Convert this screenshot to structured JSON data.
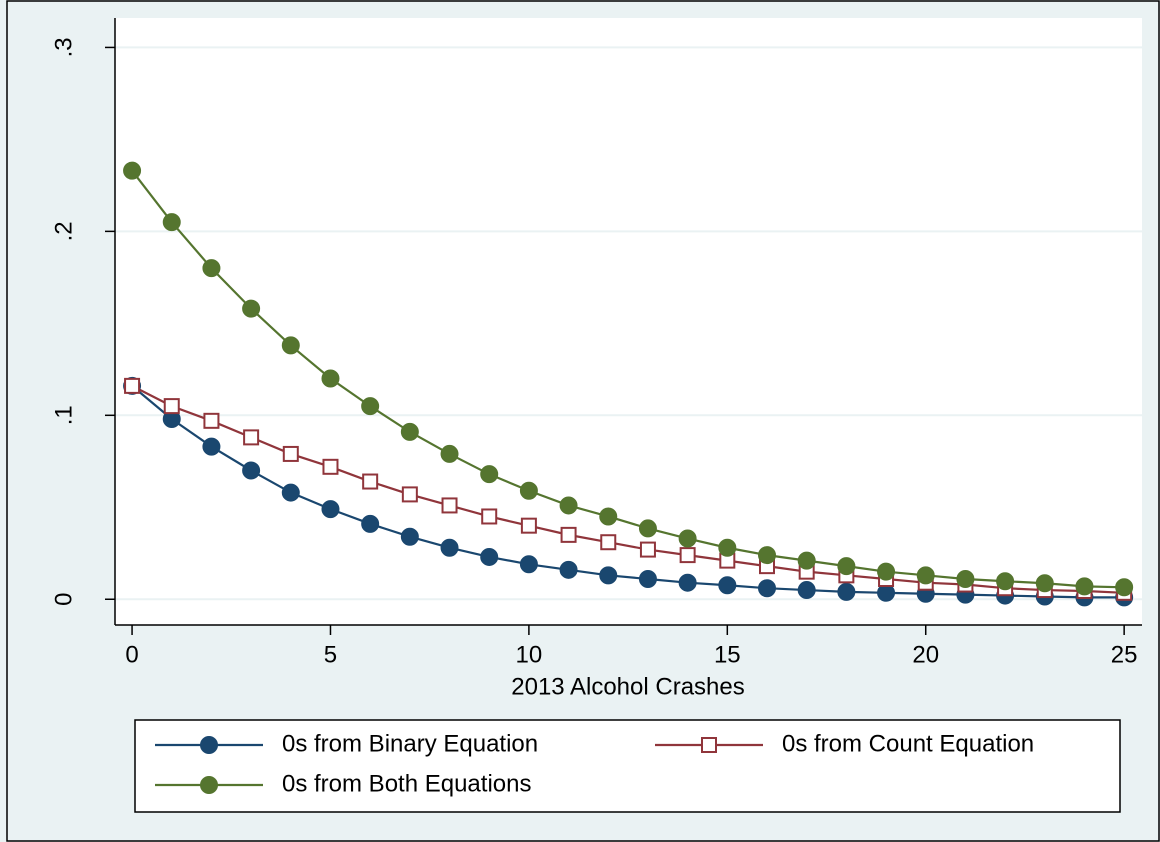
{
  "chart_data": {
    "type": "line",
    "x_label": "2013 Alcohol Crashes",
    "x": [
      0,
      1,
      2,
      3,
      4,
      5,
      6,
      7,
      8,
      9,
      10,
      11,
      12,
      13,
      14,
      15,
      16,
      17,
      18,
      19,
      20,
      21,
      22,
      23,
      24,
      25
    ],
    "series": [
      {
        "name": "0s from Binary Equation",
        "color": "#1a476f",
        "marker": "circle",
        "values": [
          0.116,
          0.098,
          0.083,
          0.07,
          0.058,
          0.049,
          0.041,
          0.034,
          0.028,
          0.023,
          0.019,
          0.016,
          0.013,
          0.011,
          0.009,
          0.0076,
          0.006,
          0.005,
          0.004,
          0.0035,
          0.003,
          0.0025,
          0.002,
          0.0015,
          0.001,
          0.001
        ]
      },
      {
        "name": "0s from Count Equation",
        "color": "#90353b",
        "marker": "square",
        "values": [
          0.116,
          0.105,
          0.097,
          0.088,
          0.079,
          0.072,
          0.064,
          0.057,
          0.051,
          0.045,
          0.04,
          0.035,
          0.031,
          0.027,
          0.024,
          0.021,
          0.018,
          0.015,
          0.013,
          0.011,
          0.009,
          0.008,
          0.006,
          0.005,
          0.0045,
          0.0035
        ]
      },
      {
        "name": "0s from Both Equations",
        "color": "#55752f",
        "marker": "circle",
        "values": [
          0.233,
          0.205,
          0.18,
          0.158,
          0.138,
          0.12,
          0.105,
          0.091,
          0.079,
          0.068,
          0.059,
          0.051,
          0.045,
          0.0385,
          0.033,
          0.028,
          0.024,
          0.021,
          0.018,
          0.015,
          0.013,
          0.011,
          0.0098,
          0.0087,
          0.007,
          0.0065
        ]
      }
    ],
    "xlim": [
      -0.43,
      25.45
    ],
    "xticks": [
      0,
      5,
      10,
      15,
      20,
      25
    ],
    "ylim": [
      -0.014,
      0.316
    ],
    "yticks": [
      0,
      {
        "value": 0.1,
        "label": ".1"
      },
      {
        "value": 0.2,
        "label": ".2"
      },
      {
        "value": 0.3,
        "label": ".3"
      }
    ],
    "grid": true
  }
}
